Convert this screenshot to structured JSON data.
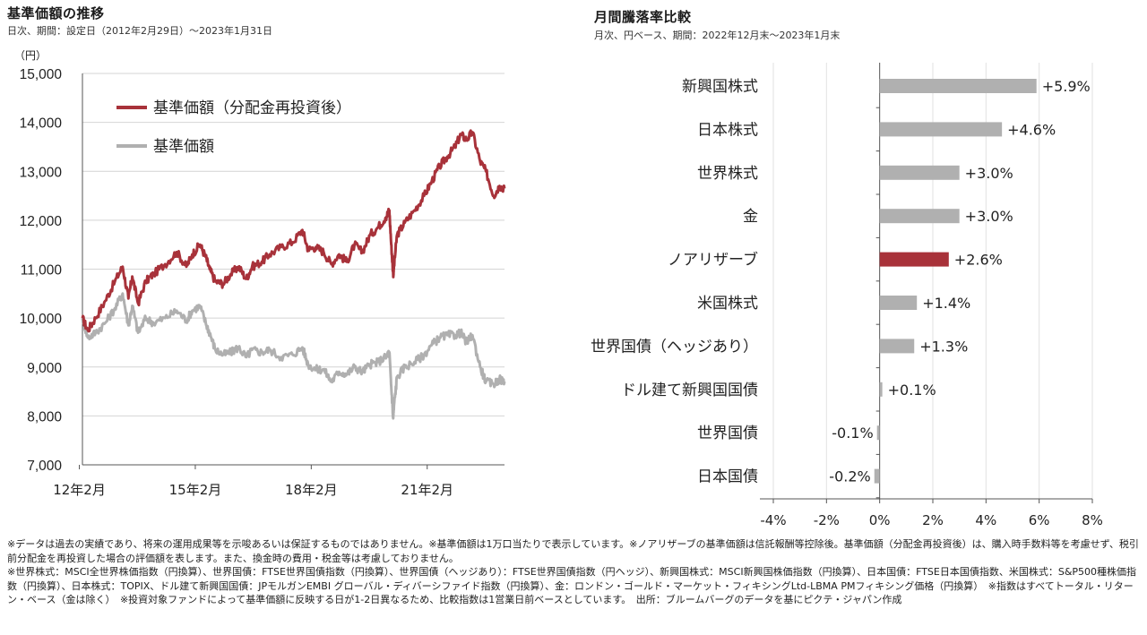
{
  "left": {
    "title": "基準価額の推移",
    "subtitle": "日次、期間：設定日（2012年2月29日）～2023年1月31日"
  },
  "right": {
    "title": "月間騰落率比較",
    "subtitle": "月次、円ベース、期間：2022年12月末～2023年1月末"
  },
  "colors": {
    "reinvested": "#a8323a",
    "nav": "#b0b0b0",
    "highlight": "#a8323a",
    "grid": "#d4d4d4",
    "axis": "#555555"
  },
  "notes": [
    "※データは過去の実績であり、将来の運用成果等を示唆あるいは保証するものではありません。※基準価額は1万口当たりで表示しています。※ノアリザーブの基準価額は信託報酬等控除後。基準価額（分配金再投資後）は、購入時手数料等を考慮せず、税引前分配金を再投資した場合の評価額を表します。また、換金時の費用・税金等は考慮しておりません。",
    "※世界株式：MSCI全世界株価指数（円換算）、世界国債：FTSE世界国債指数（円換算）、世界国債（ヘッジあり）：FTSE世界国債指数（円ヘッジ）、新興国株式：MSCI新興国株価指数（円換算）、日本国債：FTSE日本国債指数、米国株式：S&P500種株価指数（円換算）、日本株式：TOPIX、ドル建て新興国国債：JPモルガンEMBI グローバル・ディバーシファイド指数（円換算）、金：ロンドン・ゴールド・マーケット・フィキシングLtd-LBMA PMフィキシング価格（円換算）　※指数はすべてトータル・リターン・ベース（金は除く）　※投資対象ファンドによって基準価額に反映する日が1-2日異なるため、比較指数は1営業日前ベースとしています。　出所：ブルームバーグのデータを基にピクテ・ジャパン作成"
  ],
  "chart_data": [
    {
      "type": "line",
      "ylabel": "（円）",
      "ylim": [
        7000,
        15000
      ],
      "yticks": [
        "7,000",
        "8,000",
        "9,000",
        "10,000",
        "11,000",
        "12,000",
        "13,000",
        "14,000",
        "15,000"
      ],
      "xlim": [
        2012.16,
        2023.08
      ],
      "xticks": [
        {
          "label": "12年2月",
          "x": 2012.08
        },
        {
          "label": "15年2月",
          "x": 2015.08
        },
        {
          "label": "18年2月",
          "x": 2018.08
        },
        {
          "label": "21年2月",
          "x": 2021.08
        }
      ],
      "series": [
        {
          "name": "基準価額（分配金再投資後）",
          "x": [
            2012.16,
            2012.3,
            2012.5,
            2012.75,
            2013.0,
            2013.2,
            2013.35,
            2013.45,
            2013.6,
            2013.8,
            2014.0,
            2014.3,
            2014.6,
            2014.85,
            2015.0,
            2015.2,
            2015.35,
            2015.45,
            2015.6,
            2015.8,
            2016.0,
            2016.2,
            2016.4,
            2016.55,
            2016.8,
            2017.0,
            2017.3,
            2017.6,
            2017.85,
            2018.0,
            2018.2,
            2018.4,
            2018.6,
            2018.8,
            2019.0,
            2019.2,
            2019.4,
            2019.6,
            2019.8,
            2020.0,
            2020.1,
            2020.15,
            2020.2,
            2020.22,
            2020.3,
            2020.5,
            2020.75,
            2021.0,
            2021.2,
            2021.4,
            2021.6,
            2021.8,
            2021.95,
            2022.1,
            2022.25,
            2022.45,
            2022.6,
            2022.8,
            2022.95,
            2023.08
          ],
          "values": [
            10000,
            9750,
            10000,
            10350,
            10750,
            11050,
            10400,
            10850,
            10300,
            10750,
            10900,
            11100,
            11350,
            11050,
            11300,
            11500,
            11250,
            11000,
            10750,
            10700,
            10900,
            11050,
            10800,
            11050,
            11150,
            11300,
            11450,
            11550,
            11800,
            11400,
            11450,
            11350,
            11100,
            11300,
            11150,
            11500,
            11350,
            11700,
            11850,
            12050,
            12200,
            11500,
            10900,
            11050,
            11700,
            11950,
            12200,
            12500,
            12800,
            13100,
            13300,
            13500,
            13750,
            13650,
            13800,
            13200,
            13000,
            12500,
            12700,
            12650
          ]
        },
        {
          "name": "基準価額",
          "x": [
            2012.16,
            2012.3,
            2012.5,
            2012.75,
            2013.0,
            2013.2,
            2013.35,
            2013.45,
            2013.6,
            2013.8,
            2014.0,
            2014.3,
            2014.6,
            2014.85,
            2015.0,
            2015.2,
            2015.35,
            2015.45,
            2015.6,
            2015.8,
            2016.0,
            2016.2,
            2016.4,
            2016.55,
            2016.8,
            2017.0,
            2017.3,
            2017.6,
            2017.85,
            2018.0,
            2018.2,
            2018.4,
            2018.6,
            2018.8,
            2019.0,
            2019.2,
            2019.4,
            2019.6,
            2019.8,
            2020.0,
            2020.1,
            2020.15,
            2020.2,
            2020.22,
            2020.3,
            2020.5,
            2020.75,
            2021.0,
            2021.2,
            2021.4,
            2021.6,
            2021.8,
            2021.95,
            2022.1,
            2022.25,
            2022.45,
            2022.6,
            2022.8,
            2022.95,
            2023.08
          ],
          "values": [
            10000,
            9600,
            9700,
            9900,
            10200,
            10500,
            9850,
            10250,
            9700,
            10000,
            9900,
            10000,
            10150,
            9950,
            10150,
            10250,
            9900,
            9700,
            9350,
            9250,
            9300,
            9400,
            9200,
            9350,
            9300,
            9350,
            9200,
            9250,
            9400,
            9050,
            8950,
            8950,
            8700,
            8900,
            8850,
            9000,
            8900,
            9050,
            9100,
            9200,
            9300,
            8600,
            7950,
            8200,
            8800,
            9000,
            9100,
            9250,
            9450,
            9600,
            9650,
            9650,
            9700,
            9500,
            9650,
            9000,
            8700,
            8650,
            8750,
            8700
          ]
        }
      ]
    },
    {
      "type": "bar",
      "orientation": "horizontal",
      "categories": [
        "新興国株式",
        "日本株式",
        "世界株式",
        "金",
        "ノアリザーブ",
        "米国株式",
        "世界国債（ヘッジあり）",
        "ドル建て新興国国債",
        "世界国債",
        "日本国債"
      ],
      "values": [
        5.9,
        4.6,
        3.0,
        3.0,
        2.6,
        1.4,
        1.3,
        0.1,
        -0.1,
        -0.2
      ],
      "labels": [
        "+5.9%",
        "+4.6%",
        "+3.0%",
        "+3.0%",
        "+2.6%",
        "+1.4%",
        "+1.3%",
        "+0.1%",
        "-0.1%",
        "-0.2%"
      ],
      "highlight": "ノアリザーブ",
      "xlim": [
        -4,
        8
      ],
      "xticks": [
        "-4%",
        "-2%",
        "0%",
        "2%",
        "4%",
        "6%",
        "8%"
      ]
    }
  ]
}
